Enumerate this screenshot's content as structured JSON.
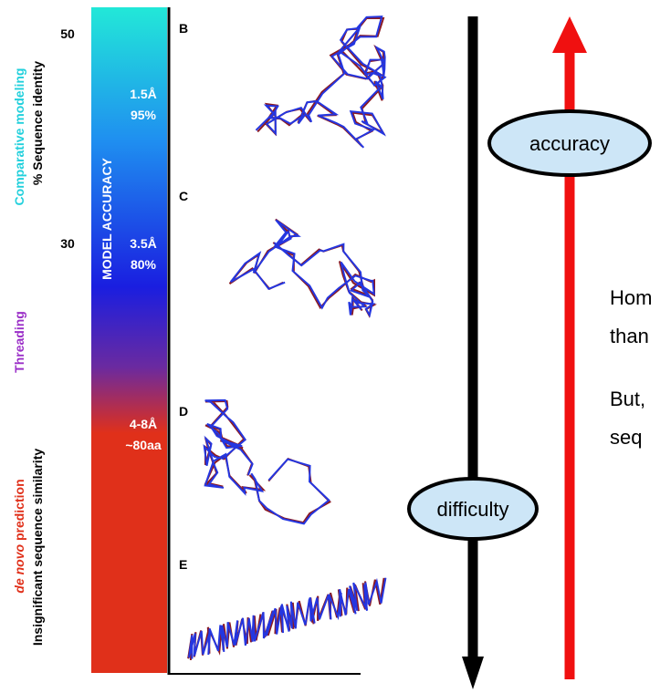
{
  "left_axis": {
    "ticks": [
      "50",
      "30"
    ],
    "comparative": "Comparative modeling",
    "identity": "% Sequence identity",
    "threading": "Threading",
    "denovo_italic": "de novo",
    "denovo_rest": " prediction",
    "insignificant": "Insignificant sequence similarity"
  },
  "bar": {
    "title": "MODEL ACCURACY",
    "annotations": [
      {
        "line1": "1.5Å",
        "line2": "95%"
      },
      {
        "line1": "3.5Å",
        "line2": "80%"
      },
      {
        "line1": "4-8Å",
        "line2": "~80aa"
      }
    ]
  },
  "panels": [
    "B",
    "C",
    "D",
    "E"
  ],
  "arrows": {
    "accuracy": "accuracy",
    "difficulty": "difficulty"
  },
  "side_text": [
    "Hom",
    "than",
    "But,",
    "seq"
  ]
}
